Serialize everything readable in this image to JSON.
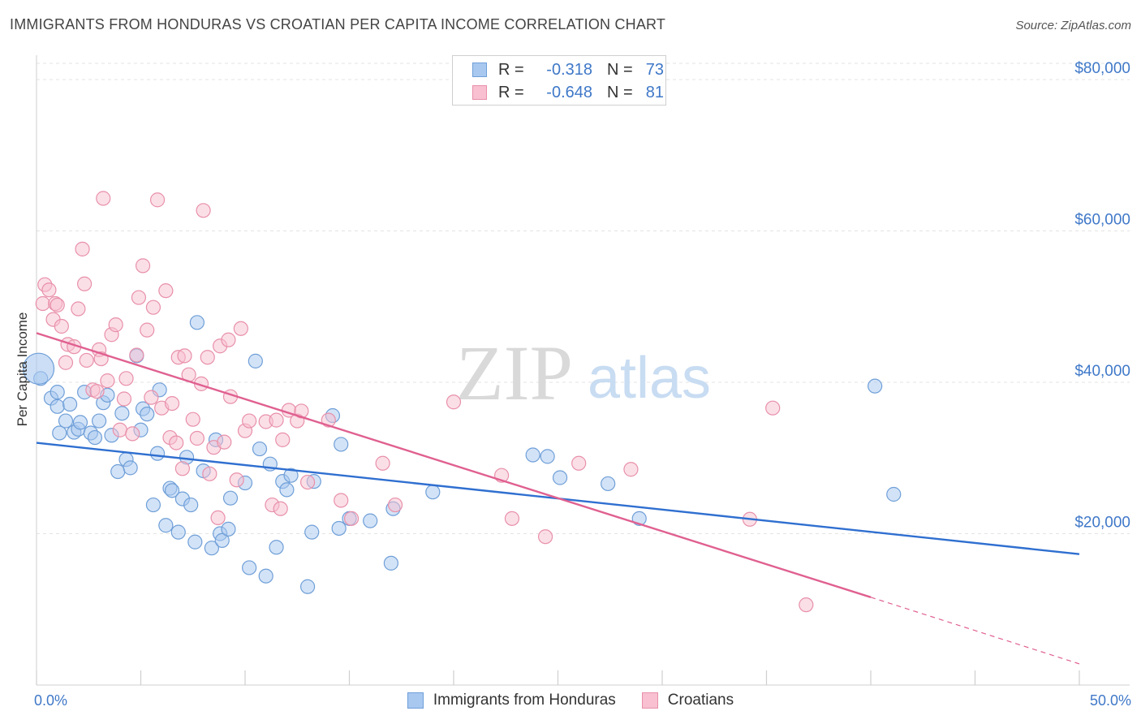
{
  "title": "IMMIGRANTS FROM HONDURAS VS CROATIAN PER CAPITA INCOME CORRELATION CHART",
  "source": "Source: ZipAtlas.com",
  "watermark": {
    "zip": "ZIP",
    "atlas": "atlas"
  },
  "legend_top": {
    "rows": [
      {
        "r_label": "R =",
        "r_value": "-0.318",
        "n_label": "N =",
        "n_value": "73",
        "color": "#a8c8f0",
        "border": "#6f9fd8"
      },
      {
        "r_label": "R =",
        "r_value": "-0.648",
        "n_label": "N =",
        "n_value": "81",
        "color": "#f8c0d0",
        "border": "#e890aa"
      }
    ]
  },
  "legend_bottom": {
    "items": [
      {
        "label": "Immigrants from Honduras",
        "color": "#a8c8f0",
        "border": "#6f9fd8"
      },
      {
        "label": "Croatians",
        "color": "#f8c0d0",
        "border": "#e890aa"
      }
    ]
  },
  "axes": {
    "ylabel": "Per Capita Income",
    "x_min_label": "0.0%",
    "x_max_label": "50.0%"
  },
  "chart_data": {
    "type": "scatter",
    "title": "IMMIGRANTS FROM HONDURAS VS CROATIAN PER CAPITA INCOME CORRELATION CHART",
    "xlabel": "",
    "ylabel": "Per Capita Income",
    "xlim": [
      0,
      50
    ],
    "ylim": [
      0,
      83000
    ],
    "x_unit": "%",
    "yticks": [
      {
        "value": 20000,
        "label": "$20,000"
      },
      {
        "value": 40000,
        "label": "$40,000"
      },
      {
        "value": 60000,
        "label": "$60,000"
      },
      {
        "value": 80000,
        "label": "$80,000"
      }
    ],
    "grid": true,
    "legend_position": "top-center",
    "series": [
      {
        "name": "Immigrants from Honduras",
        "color": "#a8c8f0",
        "stroke": "#6f9fd8",
        "line_color": "#2f6fd0",
        "trend": {
          "x0": 0,
          "y0": 32000,
          "x1": 50,
          "y1": 17300
        },
        "points": [
          [
            0.2,
            40500
          ],
          [
            0.7,
            37900
          ],
          [
            1.0,
            38700
          ],
          [
            1.0,
            36800
          ],
          [
            1.1,
            33300
          ],
          [
            1.4,
            34900
          ],
          [
            1.6,
            37100
          ],
          [
            1.8,
            33400
          ],
          [
            2.0,
            33800
          ],
          [
            2.1,
            34700
          ],
          [
            2.3,
            38700
          ],
          [
            2.6,
            33300
          ],
          [
            2.8,
            32700
          ],
          [
            3.0,
            34900
          ],
          [
            3.2,
            37300
          ],
          [
            3.4,
            38300
          ],
          [
            3.6,
            33000
          ],
          [
            3.9,
            28200
          ],
          [
            4.1,
            35900
          ],
          [
            4.3,
            29800
          ],
          [
            4.5,
            28700
          ],
          [
            4.8,
            43500
          ],
          [
            5.0,
            33700
          ],
          [
            5.1,
            36500
          ],
          [
            5.3,
            35800
          ],
          [
            5.6,
            23800
          ],
          [
            5.8,
            30600
          ],
          [
            5.9,
            39000
          ],
          [
            6.2,
            21100
          ],
          [
            6.4,
            26000
          ],
          [
            6.5,
            25700
          ],
          [
            6.8,
            20200
          ],
          [
            7.0,
            24600
          ],
          [
            7.2,
            30100
          ],
          [
            7.4,
            23800
          ],
          [
            7.6,
            18900
          ],
          [
            7.7,
            47900
          ],
          [
            8.0,
            28300
          ],
          [
            8.4,
            18100
          ],
          [
            8.6,
            32400
          ],
          [
            8.8,
            20000
          ],
          [
            8.9,
            19100
          ],
          [
            9.2,
            20600
          ],
          [
            9.3,
            24700
          ],
          [
            10.0,
            26700
          ],
          [
            10.2,
            15500
          ],
          [
            10.5,
            42800
          ],
          [
            10.7,
            31200
          ],
          [
            11.0,
            14400
          ],
          [
            11.2,
            29200
          ],
          [
            11.5,
            18200
          ],
          [
            11.8,
            26900
          ],
          [
            12.0,
            25800
          ],
          [
            12.2,
            27700
          ],
          [
            13.0,
            13000
          ],
          [
            13.2,
            20200
          ],
          [
            13.3,
            26900
          ],
          [
            14.2,
            35600
          ],
          [
            14.5,
            20700
          ],
          [
            14.6,
            31800
          ],
          [
            15.0,
            22000
          ],
          [
            16.0,
            21700
          ],
          [
            17.1,
            23300
          ],
          [
            17.0,
            16100
          ],
          [
            19.0,
            25500
          ],
          [
            23.8,
            30400
          ],
          [
            24.5,
            30200
          ],
          [
            25.1,
            27400
          ],
          [
            27.4,
            26600
          ],
          [
            28.9,
            22000
          ],
          [
            40.2,
            39500
          ],
          [
            41.1,
            25200
          ],
          [
            0.1,
            41800
          ]
        ]
      },
      {
        "name": "Croatians",
        "color": "#f8c0d0",
        "stroke": "#e890aa",
        "line_color": "#e06090",
        "trend": {
          "x0": 0,
          "y0": 46500,
          "x1": 40,
          "y1": 11600,
          "dash_x1": 50,
          "dash_y1": 2800
        },
        "points": [
          [
            0.3,
            50400
          ],
          [
            0.4,
            52900
          ],
          [
            0.6,
            52200
          ],
          [
            0.8,
            48300
          ],
          [
            0.9,
            50400
          ],
          [
            1.0,
            50200
          ],
          [
            1.2,
            47400
          ],
          [
            1.4,
            42600
          ],
          [
            1.5,
            45000
          ],
          [
            1.8,
            44700
          ],
          [
            2.0,
            49700
          ],
          [
            2.2,
            57600
          ],
          [
            2.3,
            53000
          ],
          [
            2.4,
            42900
          ],
          [
            2.7,
            39000
          ],
          [
            2.9,
            38800
          ],
          [
            3.0,
            44300
          ],
          [
            3.1,
            43100
          ],
          [
            3.2,
            64300
          ],
          [
            3.4,
            40200
          ],
          [
            3.6,
            46300
          ],
          [
            3.8,
            47600
          ],
          [
            4.0,
            33700
          ],
          [
            4.2,
            37800
          ],
          [
            4.3,
            40500
          ],
          [
            4.6,
            33200
          ],
          [
            4.8,
            43600
          ],
          [
            4.9,
            51200
          ],
          [
            5.1,
            55400
          ],
          [
            5.3,
            46900
          ],
          [
            5.5,
            38000
          ],
          [
            5.6,
            49900
          ],
          [
            5.8,
            64100
          ],
          [
            6.0,
            36600
          ],
          [
            6.2,
            52100
          ],
          [
            6.4,
            32700
          ],
          [
            6.5,
            37200
          ],
          [
            6.7,
            32000
          ],
          [
            6.8,
            43300
          ],
          [
            7.0,
            28600
          ],
          [
            7.1,
            43500
          ],
          [
            7.3,
            41000
          ],
          [
            7.5,
            35100
          ],
          [
            7.7,
            32600
          ],
          [
            7.9,
            39800
          ],
          [
            8.0,
            62700
          ],
          [
            8.2,
            43300
          ],
          [
            8.3,
            27900
          ],
          [
            8.5,
            31400
          ],
          [
            8.7,
            22100
          ],
          [
            8.8,
            44800
          ],
          [
            9.0,
            32100
          ],
          [
            9.2,
            45600
          ],
          [
            9.3,
            38100
          ],
          [
            9.6,
            27100
          ],
          [
            9.8,
            47100
          ],
          [
            10.0,
            33600
          ],
          [
            10.2,
            34900
          ],
          [
            11.0,
            34800
          ],
          [
            11.3,
            23800
          ],
          [
            11.5,
            35000
          ],
          [
            11.7,
            23300
          ],
          [
            11.8,
            32400
          ],
          [
            12.1,
            36300
          ],
          [
            12.5,
            34900
          ],
          [
            12.7,
            36200
          ],
          [
            13.0,
            26800
          ],
          [
            14.0,
            35000
          ],
          [
            14.6,
            24400
          ],
          [
            15.1,
            22000
          ],
          [
            16.6,
            29300
          ],
          [
            17.2,
            23800
          ],
          [
            20.0,
            37400
          ],
          [
            22.3,
            27700
          ],
          [
            22.8,
            22000
          ],
          [
            24.4,
            19600
          ],
          [
            26.0,
            29300
          ],
          [
            28.5,
            28500
          ],
          [
            34.2,
            21900
          ],
          [
            35.3,
            36600
          ],
          [
            36.9,
            10600
          ]
        ]
      }
    ]
  }
}
